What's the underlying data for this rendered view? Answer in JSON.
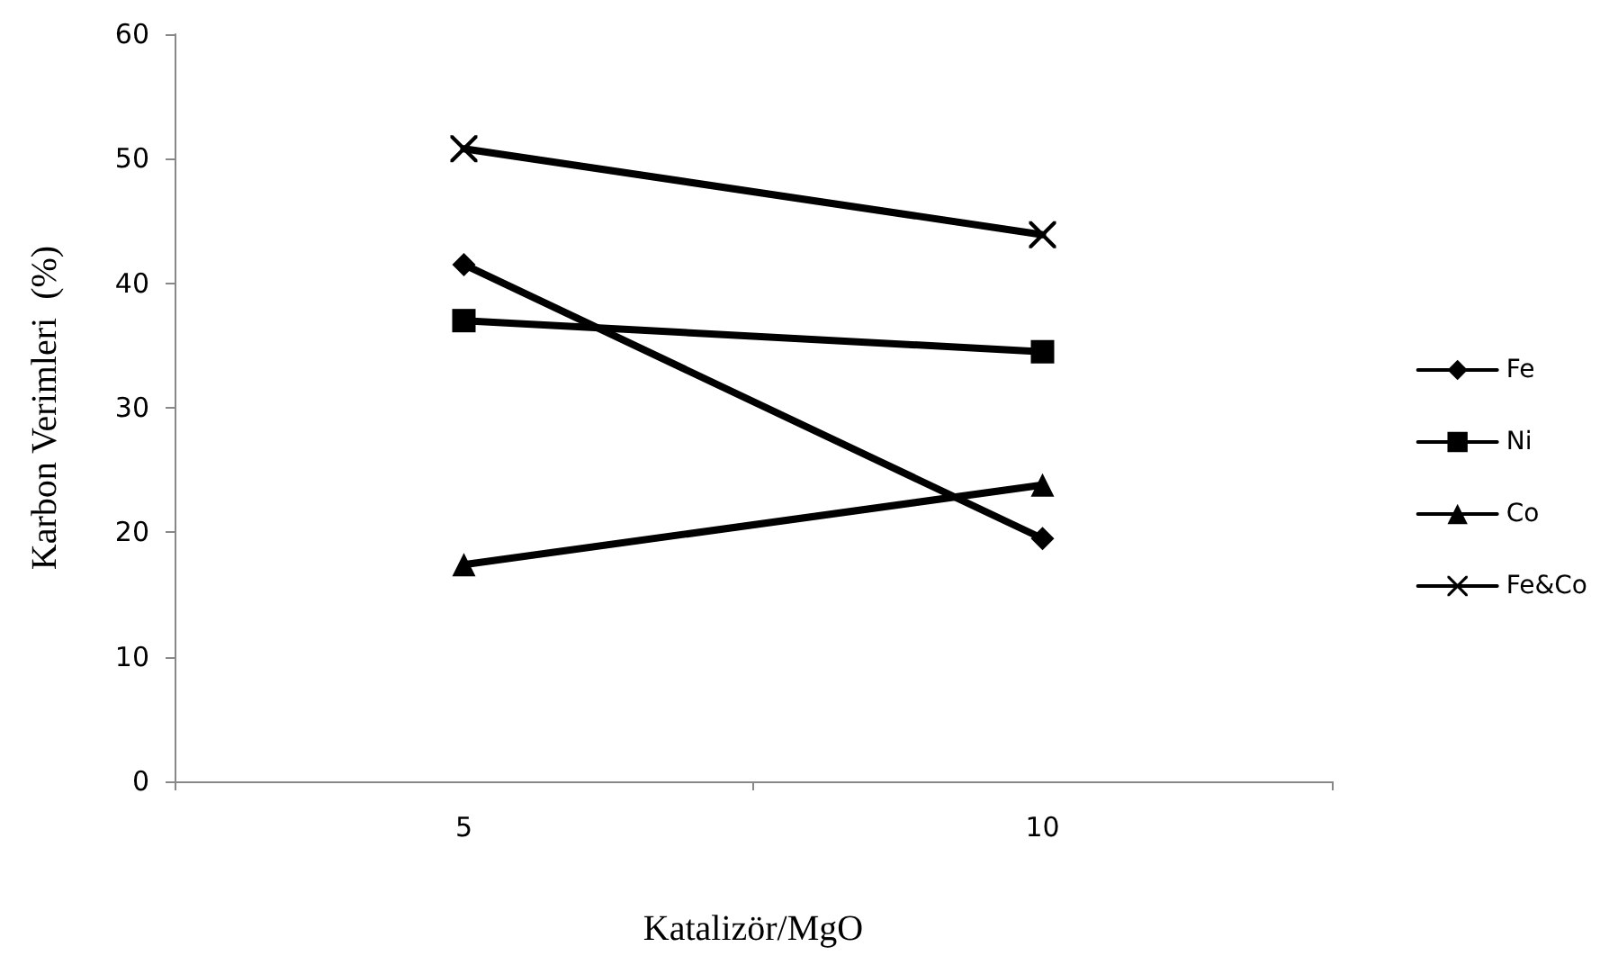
{
  "chart_data": {
    "type": "line",
    "xlabel": "Katalizör/MgO",
    "ylabel": "Karbon Verimleri  (%)",
    "categories": [
      "5",
      "10"
    ],
    "ylim": [
      0,
      60
    ],
    "yticks": [
      0,
      10,
      20,
      30,
      40,
      50,
      60
    ],
    "grid": false,
    "legend": "right",
    "line_style": "solid",
    "series": [
      {
        "name": "Fe",
        "color": "#000000",
        "marker": "diamond",
        "values": [
          41.5,
          19.5
        ]
      },
      {
        "name": "Ni",
        "color": "#000000",
        "marker": "square",
        "values": [
          37.0,
          34.5
        ]
      },
      {
        "name": "Co",
        "color": "#000000",
        "marker": "triangle",
        "values": [
          17.4,
          23.8
        ]
      },
      {
        "name": "Fe&Co",
        "color": "#000000",
        "marker": "cross",
        "values": [
          50.8,
          43.9
        ]
      }
    ]
  }
}
